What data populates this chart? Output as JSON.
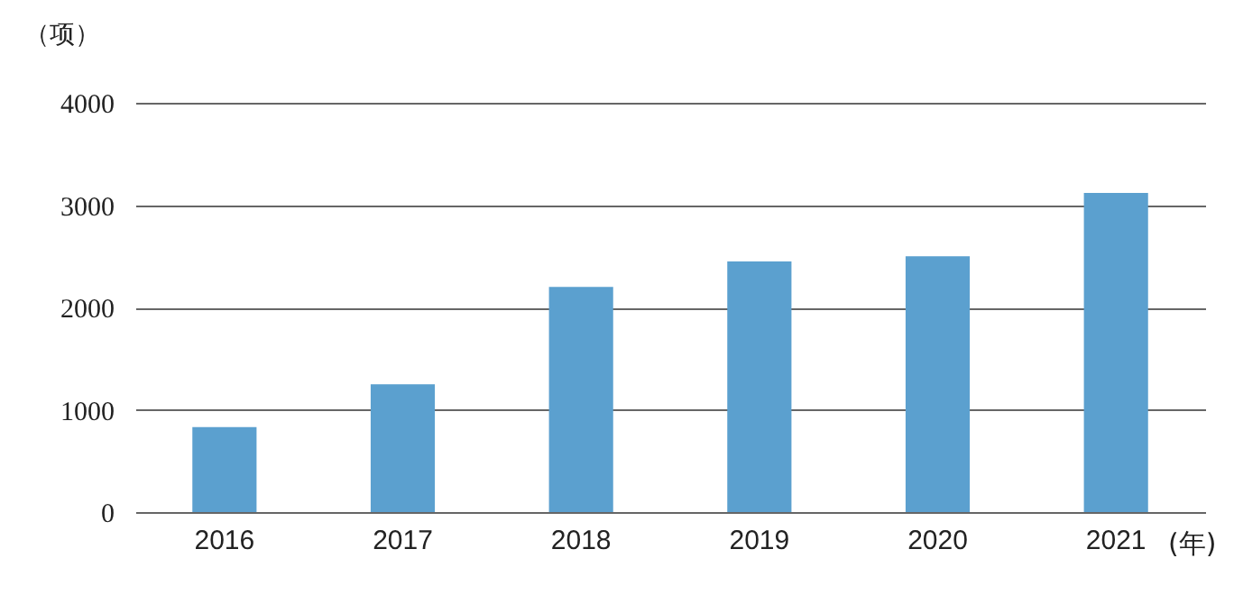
{
  "chart_data": {
    "type": "bar",
    "xlabel": "(年)",
    "ylabel": "（项）",
    "categories": [
      "2016",
      "2017",
      "2018",
      "2019",
      "2020",
      "2021"
    ],
    "values": [
      830,
      1250,
      2200,
      2450,
      2500,
      3120
    ],
    "color": "#5ba0cf",
    "ylim": [
      0,
      4000
    ],
    "yticks": [
      0,
      1000,
      2000,
      3000,
      4000
    ],
    "grid": "y"
  }
}
